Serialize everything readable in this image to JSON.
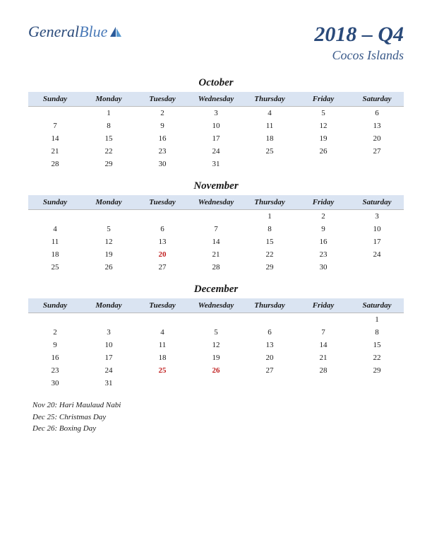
{
  "logo": {
    "part1": "General",
    "part2": "Blue"
  },
  "title": {
    "quarter": "2018 – Q4",
    "region": "Cocos Islands"
  },
  "colors": {
    "header_bg": "#dae4f2",
    "title_color": "#2a4a7a",
    "holiday_color": "#c02020",
    "logo_sail1": "#2a5a9a",
    "logo_sail2": "#5a9ad0"
  },
  "day_headers": [
    "Sunday",
    "Monday",
    "Tuesday",
    "Wednesday",
    "Thursday",
    "Friday",
    "Saturday"
  ],
  "months": [
    {
      "name": "October",
      "weeks": [
        [
          "",
          "1",
          "2",
          "3",
          "4",
          "5",
          "6"
        ],
        [
          "7",
          "8",
          "9",
          "10",
          "11",
          "12",
          "13"
        ],
        [
          "14",
          "15",
          "16",
          "17",
          "18",
          "19",
          "20"
        ],
        [
          "21",
          "22",
          "23",
          "24",
          "25",
          "26",
          "27"
        ],
        [
          "28",
          "29",
          "30",
          "31",
          "",
          "",
          ""
        ]
      ],
      "holidays": []
    },
    {
      "name": "November",
      "weeks": [
        [
          "",
          "",
          "",
          "",
          "1",
          "2",
          "3"
        ],
        [
          "4",
          "5",
          "6",
          "7",
          "8",
          "9",
          "10"
        ],
        [
          "11",
          "12",
          "13",
          "14",
          "15",
          "16",
          "17"
        ],
        [
          "18",
          "19",
          "20",
          "21",
          "22",
          "23",
          "24"
        ],
        [
          "25",
          "26",
          "27",
          "28",
          "29",
          "30",
          ""
        ]
      ],
      "holidays": [
        "20"
      ]
    },
    {
      "name": "December",
      "weeks": [
        [
          "",
          "",
          "",
          "",
          "",
          "",
          "1"
        ],
        [
          "2",
          "3",
          "4",
          "5",
          "6",
          "7",
          "8"
        ],
        [
          "9",
          "10",
          "11",
          "12",
          "13",
          "14",
          "15"
        ],
        [
          "16",
          "17",
          "18",
          "19",
          "20",
          "21",
          "22"
        ],
        [
          "23",
          "24",
          "25",
          "26",
          "27",
          "28",
          "29"
        ],
        [
          "30",
          "31",
          "",
          "",
          "",
          "",
          ""
        ]
      ],
      "holidays": [
        "25",
        "26"
      ]
    }
  ],
  "holiday_list": [
    "Nov 20: Hari Maulaud Nabi",
    "Dec 25: Christmas Day",
    "Dec 26: Boxing Day"
  ]
}
